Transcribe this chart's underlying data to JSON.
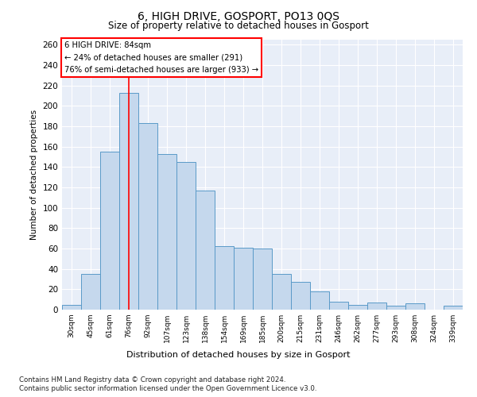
{
  "title": "6, HIGH DRIVE, GOSPORT, PO13 0QS",
  "subtitle": "Size of property relative to detached houses in Gosport",
  "xlabel": "Distribution of detached houses by size in Gosport",
  "ylabel": "Number of detached properties",
  "categories": [
    "30sqm",
    "45sqm",
    "61sqm",
    "76sqm",
    "92sqm",
    "107sqm",
    "123sqm",
    "138sqm",
    "154sqm",
    "169sqm",
    "185sqm",
    "200sqm",
    "215sqm",
    "231sqm",
    "246sqm",
    "262sqm",
    "277sqm",
    "293sqm",
    "308sqm",
    "324sqm",
    "339sqm"
  ],
  "values": [
    5,
    35,
    155,
    213,
    183,
    153,
    145,
    117,
    62,
    61,
    60,
    35,
    27,
    18,
    8,
    5,
    7,
    4,
    6,
    0,
    4
  ],
  "bar_color": "#c5d8ed",
  "bar_edge_color": "#5a9ac8",
  "red_line_index": 3,
  "annotation_title": "6 HIGH DRIVE: 84sqm",
  "annotation_line1": "← 24% of detached houses are smaller (291)",
  "annotation_line2": "76% of semi-detached houses are larger (933) →",
  "ylim": [
    0,
    265
  ],
  "yticks": [
    0,
    20,
    40,
    60,
    80,
    100,
    120,
    140,
    160,
    180,
    200,
    220,
    240,
    260
  ],
  "footer1": "Contains HM Land Registry data © Crown copyright and database right 2024.",
  "footer2": "Contains public sector information licensed under the Open Government Licence v3.0.",
  "plot_bg_color": "#e8eef8",
  "fig_bg_color": "#ffffff"
}
